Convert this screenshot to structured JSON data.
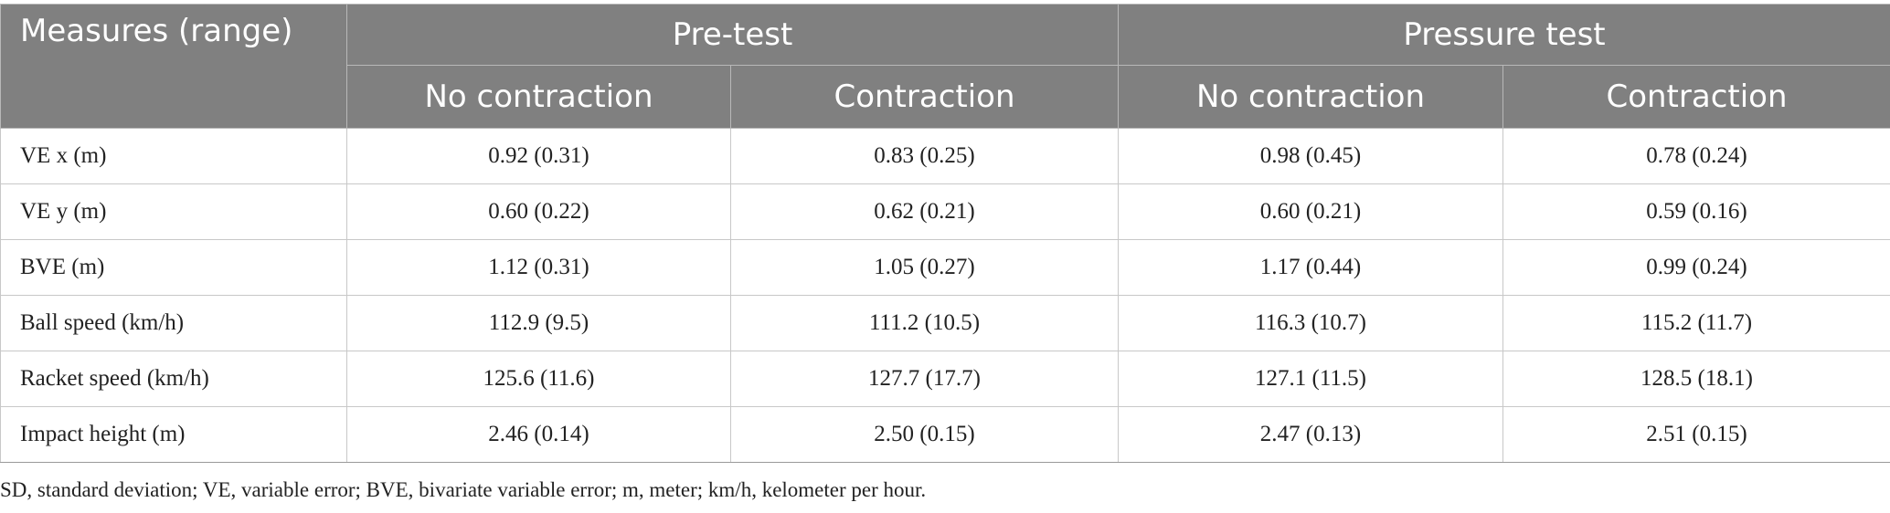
{
  "table": {
    "header": {
      "measures_label": "Measures (range)",
      "groups": [
        "Pre-test",
        "Pressure test"
      ],
      "subcolumns": [
        "No contraction",
        "Contraction",
        "No contraction",
        "Contraction"
      ]
    },
    "rows": [
      {
        "label": "VE x (m)",
        "values": [
          "0.92 (0.31)",
          "0.83 (0.25)",
          "0.98 (0.45)",
          "0.78 (0.24)"
        ]
      },
      {
        "label": "VE y (m)",
        "values": [
          "0.60 (0.22)",
          "0.62 (0.21)",
          "0.60 (0.21)",
          "0.59 (0.16)"
        ]
      },
      {
        "label": "BVE (m)",
        "values": [
          "1.12 (0.31)",
          "1.05 (0.27)",
          "1.17 (0.44)",
          "0.99 (0.24)"
        ]
      },
      {
        "label": "Ball speed (km/h)",
        "values": [
          "112.9 (9.5)",
          "111.2 (10.5)",
          "116.3 (10.7)",
          "115.2 (11.7)"
        ]
      },
      {
        "label": "Racket speed (km/h)",
        "values": [
          "125.6 (11.6)",
          "127.7 (17.7)",
          "127.1 (11.5)",
          "128.5 (18.1)"
        ]
      },
      {
        "label": "Impact height (m)",
        "values": [
          "2.46 (0.14)",
          "2.50 (0.15)",
          "2.47 (0.13)",
          "2.51 (0.15)"
        ]
      }
    ]
  },
  "footnote": "SD, standard deviation; VE, variable error; BVE, bivariate variable error; m, meter; km/h, kelometer per hour.",
  "colors": {
    "header_background": "#808080",
    "header_text": "#ffffff",
    "body_text": "#222222",
    "grid_line": "#c8c8c8"
  }
}
